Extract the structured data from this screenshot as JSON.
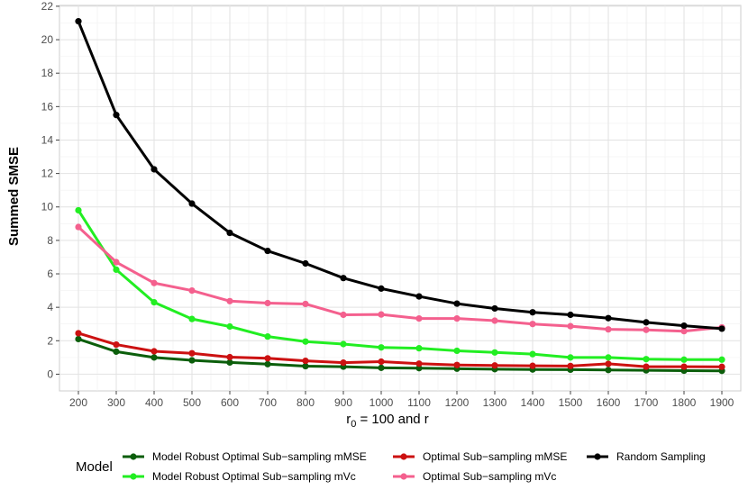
{
  "chart_data": {
    "type": "line",
    "title": "",
    "ylabel": "Summed SMSE",
    "xlabel_parts": {
      "base": "r",
      "sub": "0",
      "rest": " = 100 and r"
    },
    "x": [
      200,
      300,
      400,
      500,
      600,
      700,
      800,
      900,
      1000,
      1100,
      1200,
      1300,
      1400,
      1500,
      1600,
      1700,
      1800,
      1900
    ],
    "xticks": [
      "200",
      "300",
      "400",
      "500",
      "600",
      "700",
      "800",
      "900",
      "1000",
      "1100",
      "1200",
      "1300",
      "1400",
      "1500",
      "1600",
      "1700",
      "1800",
      "1900"
    ],
    "yticks": [
      "0",
      "2",
      "4",
      "6",
      "8",
      "10",
      "12",
      "14",
      "16",
      "18",
      "20",
      "22"
    ],
    "xlim": [
      200,
      1900
    ],
    "ylim": [
      0,
      22
    ],
    "grid": true,
    "legend_position": "bottom",
    "legend_title": "Model",
    "series": [
      {
        "name": "Model Robust Optimal Sub−sampling mMSE",
        "color": "#0b5e0b",
        "values": [
          2.1,
          1.35,
          1.0,
          0.83,
          0.7,
          0.6,
          0.48,
          0.45,
          0.38,
          0.36,
          0.33,
          0.3,
          0.28,
          0.27,
          0.25,
          0.23,
          0.21,
          0.2
        ]
      },
      {
        "name": "Model Robust Optimal Sub−sampling mVc",
        "color": "#22ee22",
        "values": [
          9.8,
          6.25,
          4.3,
          3.3,
          2.85,
          2.25,
          1.95,
          1.8,
          1.6,
          1.55,
          1.4,
          1.3,
          1.2,
          1.0,
          1.0,
          0.9,
          0.87,
          0.87
        ]
      },
      {
        "name": "Optimal Sub−sampling mMSE",
        "color": "#cc1111",
        "values": [
          2.45,
          1.77,
          1.37,
          1.25,
          1.02,
          0.95,
          0.8,
          0.69,
          0.75,
          0.63,
          0.55,
          0.52,
          0.5,
          0.49,
          0.62,
          0.45,
          0.45,
          0.44
        ]
      },
      {
        "name": "Optimal Sub−sampling mVc",
        "color": "#f4608e",
        "values": [
          8.8,
          6.7,
          5.45,
          5.0,
          4.37,
          4.25,
          4.2,
          3.55,
          3.57,
          3.33,
          3.33,
          3.2,
          3.0,
          2.87,
          2.68,
          2.65,
          2.57,
          2.8
        ]
      },
      {
        "name": "Random Sampling",
        "color": "#000000",
        "values": [
          21.1,
          15.5,
          12.25,
          10.2,
          8.45,
          7.37,
          6.62,
          5.75,
          5.12,
          4.65,
          4.22,
          3.93,
          3.7,
          3.55,
          3.35,
          3.1,
          2.9,
          2.72
        ]
      }
    ]
  }
}
